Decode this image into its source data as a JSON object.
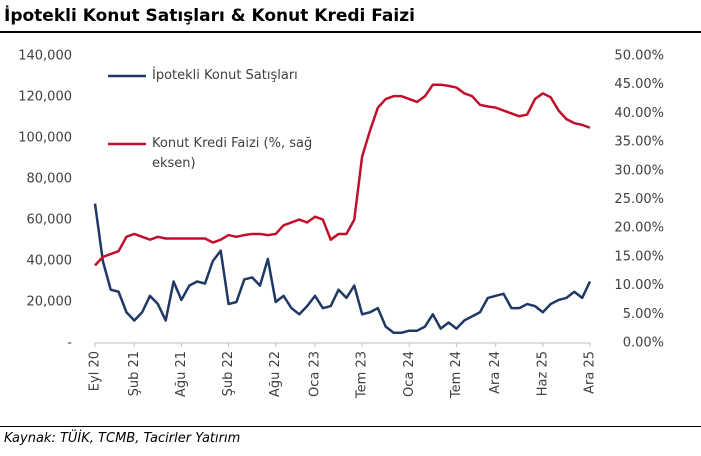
{
  "chart_data": {
    "type": "line",
    "title": "İpotekli Konut Satışları & Konut Kredi Faizi",
    "source": "Kaynak: TÜİK, TCMB, Tacirler Yatırım",
    "categories": [
      "Eyl 20",
      null,
      null,
      null,
      null,
      "Şub 21",
      null,
      null,
      null,
      null,
      null,
      "Ağu 21",
      null,
      null,
      null,
      null,
      null,
      "Şub 22",
      null,
      null,
      null,
      null,
      null,
      "Ağu 22",
      null,
      null,
      null,
      null,
      "Oca 23",
      null,
      null,
      null,
      null,
      null,
      "Tem 23",
      null,
      null,
      null,
      null,
      null,
      "Oca 24",
      null,
      null,
      null,
      null,
      null,
      "Tem 24",
      null,
      null,
      null,
      null,
      "Ara 24",
      null,
      null,
      null,
      null,
      null,
      "Haz 25",
      null,
      null,
      null,
      null,
      null,
      "Ara 25"
    ],
    "series": [
      {
        "name": "İpotekli Konut Satışları",
        "color": "#1f3864",
        "axis": "y",
        "values": [
          68000,
          40000,
          26000,
          25000,
          15000,
          11000,
          15000,
          23000,
          19000,
          11000,
          30000,
          21000,
          28000,
          30000,
          29000,
          40000,
          45000,
          19000,
          20000,
          31000,
          32000,
          28000,
          41000,
          20000,
          23000,
          17000,
          14000,
          18000,
          23000,
          17000,
          18000,
          26000,
          22000,
          28000,
          14000,
          15000,
          17000,
          8000,
          5000,
          5000,
          6000,
          6000,
          8000,
          14000,
          7000,
          10000,
          7000,
          11000,
          13000,
          15000,
          22000,
          23000,
          24000,
          17000,
          17000,
          19000,
          18000,
          15000,
          19000,
          21000,
          22000,
          25000,
          22000,
          30000
        ]
      },
      {
        "name": "Konut Kredi Faizi (%, sağ eksen)",
        "color": "#c0102c",
        "axis": "y2",
        "values": [
          13.5,
          15,
          15.5,
          16,
          18.5,
          19,
          18.5,
          18,
          18.5,
          18.2,
          18.2,
          18.2,
          18.2,
          18.2,
          18.2,
          17.5,
          18,
          18.8,
          18.5,
          18.8,
          19,
          19,
          18.8,
          19,
          20.5,
          21,
          21.5,
          21,
          22,
          21.5,
          18,
          19,
          19,
          21.5,
          32.5,
          37,
          41,
          42.5,
          43,
          43,
          42.5,
          42,
          43,
          45,
          45,
          44.8,
          44.5,
          43.5,
          43,
          41.5,
          41.2,
          41,
          40.5,
          40,
          39.5,
          39.8,
          42.5,
          43.5,
          42.8,
          40.5,
          39,
          38.3,
          38,
          37.5
        ]
      }
    ],
    "ylim": [
      0,
      140000
    ],
    "yticks": [
      {
        "value": 0,
        "label": "-"
      },
      {
        "value": 20000,
        "label": "20,000"
      },
      {
        "value": 40000,
        "label": "40,000"
      },
      {
        "value": 60000,
        "label": "60,000"
      },
      {
        "value": 80000,
        "label": "80,000"
      },
      {
        "value": 100000,
        "label": "100,000"
      },
      {
        "value": 120000,
        "label": "120,000"
      },
      {
        "value": 140000,
        "label": "140,000"
      }
    ],
    "y2lim": [
      0,
      50
    ],
    "y2ticks": [
      {
        "value": 0,
        "label": "0.00%"
      },
      {
        "value": 5,
        "label": "5.00%"
      },
      {
        "value": 10,
        "label": "10.00%"
      },
      {
        "value": 15,
        "label": "15.00%"
      },
      {
        "value": 20,
        "label": "20.00%"
      },
      {
        "value": 25,
        "label": "25.00%"
      },
      {
        "value": 30,
        "label": "30.00%"
      },
      {
        "value": 35,
        "label": "35.00%"
      },
      {
        "value": 40,
        "label": "40.00%"
      },
      {
        "value": 45,
        "label": "45.00%"
      },
      {
        "value": 50,
        "label": "50.00%"
      }
    ]
  }
}
